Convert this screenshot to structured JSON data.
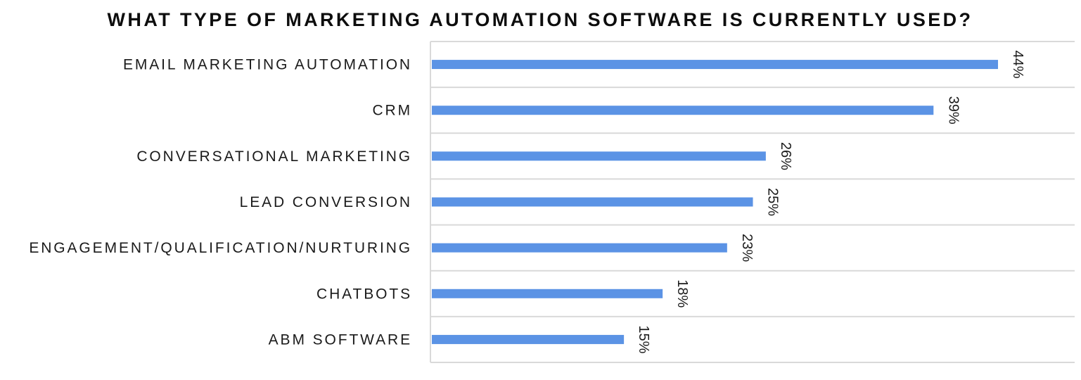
{
  "chart_data": {
    "type": "bar",
    "orientation": "horizontal",
    "title": "WHAT TYPE OF MARKETING AUTOMATION SOFTWARE IS CURRENTLY USED?",
    "xlabel": "",
    "ylabel": "",
    "categories": [
      "EMAIL MARKETING AUTOMATION",
      "CRM",
      "CONVERSATIONAL MARKETING",
      "LEAD CONVERSION",
      "ENGAGEMENT/QUALIFICATION/NURTURING",
      "CHATBOTS",
      "ABM SOFTWARE"
    ],
    "values": [
      44,
      39,
      26,
      25,
      23,
      18,
      15
    ],
    "data_labels": [
      "44%",
      "39%",
      "26%",
      "25%",
      "23%",
      "18%",
      "15%"
    ],
    "value_unit": "%",
    "xlim": [
      0,
      50
    ],
    "grid": true,
    "legend": "none",
    "bar_color": "#5b93e5",
    "grid_color": "#d9d9d9"
  }
}
